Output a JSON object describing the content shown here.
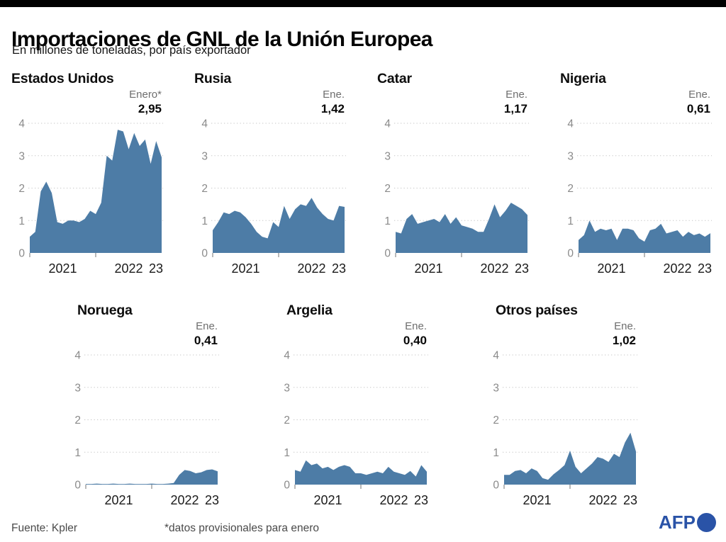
{
  "header": {
    "title": "Importaciones de GNL de la Unión Europea",
    "subtitle": "En millones de toneladas, por país exportador"
  },
  "colors": {
    "area": "#4d7ca6",
    "grid": "#c6c6c6",
    "y_tick_text": "#8a8a8a",
    "x_tick_text": "#1a1a1a",
    "axis_tick": "#8a8a8a",
    "period_label": "#6e6e6e",
    "top_bar": "#000000",
    "afp_blue": "#2a53a7"
  },
  "chart_data": [
    {
      "type": "area",
      "title": "Estados Unidos",
      "period_label": "Enero*",
      "latest_value_label": "2,95",
      "ylim": [
        0,
        4
      ],
      "y_ticks": [
        0,
        1,
        2,
        3,
        4
      ],
      "x_tick_labels": [
        "2021",
        "2022",
        "23"
      ],
      "grid": "dotted",
      "values": [
        0.5,
        0.65,
        1.9,
        2.2,
        1.85,
        0.95,
        0.9,
        1.0,
        1.0,
        0.95,
        1.05,
        1.3,
        1.2,
        1.55,
        3.0,
        2.85,
        3.8,
        3.75,
        3.2,
        3.7,
        3.3,
        3.5,
        2.75,
        3.45,
        2.95
      ]
    },
    {
      "type": "area",
      "title": "Rusia",
      "period_label": "Ene.",
      "latest_value_label": "1,42",
      "ylim": [
        0,
        4
      ],
      "y_ticks": [
        0,
        1,
        2,
        3,
        4
      ],
      "x_tick_labels": [
        "2021",
        "2022",
        "23"
      ],
      "grid": "dotted",
      "values": [
        0.7,
        0.95,
        1.25,
        1.2,
        1.3,
        1.25,
        1.1,
        0.9,
        0.65,
        0.5,
        0.45,
        0.95,
        0.8,
        1.45,
        1.05,
        1.35,
        1.5,
        1.45,
        1.7,
        1.4,
        1.2,
        1.05,
        1.0,
        1.45,
        1.42
      ]
    },
    {
      "type": "area",
      "title": "Catar",
      "period_label": "Ene.",
      "latest_value_label": "1,17",
      "ylim": [
        0,
        4
      ],
      "y_ticks": [
        0,
        1,
        2,
        3,
        4
      ],
      "x_tick_labels": [
        "2021",
        "2022",
        "23"
      ],
      "grid": "dotted",
      "values": [
        0.65,
        0.6,
        1.05,
        1.2,
        0.9,
        0.95,
        1.0,
        1.05,
        0.95,
        1.2,
        0.9,
        1.1,
        0.85,
        0.8,
        0.75,
        0.65,
        0.65,
        1.05,
        1.5,
        1.1,
        1.3,
        1.55,
        1.45,
        1.35,
        1.17
      ]
    },
    {
      "type": "area",
      "title": "Nigeria",
      "period_label": "Ene.",
      "latest_value_label": "0,61",
      "ylim": [
        0,
        4
      ],
      "y_ticks": [
        0,
        1,
        2,
        3,
        4
      ],
      "x_tick_labels": [
        "2021",
        "2022",
        "23"
      ],
      "grid": "dotted",
      "values": [
        0.4,
        0.55,
        1.0,
        0.65,
        0.75,
        0.7,
        0.75,
        0.4,
        0.75,
        0.75,
        0.7,
        0.45,
        0.35,
        0.7,
        0.75,
        0.9,
        0.6,
        0.65,
        0.7,
        0.5,
        0.65,
        0.55,
        0.6,
        0.5,
        0.61
      ]
    },
    {
      "type": "area",
      "title": "Noruega",
      "period_label": "Ene.",
      "latest_value_label": "0,41",
      "ylim": [
        0,
        4
      ],
      "y_ticks": [
        0,
        1,
        2,
        3,
        4
      ],
      "x_tick_labels": [
        "2021",
        "2022",
        "23"
      ],
      "grid": "dotted",
      "values": [
        0.02,
        0.02,
        0.03,
        0.02,
        0.02,
        0.03,
        0.02,
        0.02,
        0.03,
        0.02,
        0.02,
        0.02,
        0.03,
        0.02,
        0.02,
        0.03,
        0.05,
        0.3,
        0.45,
        0.42,
        0.35,
        0.38,
        0.45,
        0.47,
        0.41
      ]
    },
    {
      "type": "area",
      "title": "Argelia",
      "period_label": "Ene.",
      "latest_value_label": "0,40",
      "ylim": [
        0,
        4
      ],
      "y_ticks": [
        0,
        1,
        2,
        3,
        4
      ],
      "x_tick_labels": [
        "2021",
        "2022",
        "23"
      ],
      "grid": "dotted",
      "values": [
        0.45,
        0.4,
        0.75,
        0.6,
        0.65,
        0.5,
        0.55,
        0.45,
        0.55,
        0.6,
        0.55,
        0.35,
        0.35,
        0.3,
        0.35,
        0.4,
        0.35,
        0.55,
        0.4,
        0.35,
        0.3,
        0.42,
        0.25,
        0.6,
        0.4
      ]
    },
    {
      "type": "area",
      "title": "Otros países",
      "period_label": "Ene.",
      "latest_value_label": "1,02",
      "ylim": [
        0,
        4
      ],
      "y_ticks": [
        0,
        1,
        2,
        3,
        4
      ],
      "x_tick_labels": [
        "2021",
        "2022",
        "23"
      ],
      "grid": "dotted",
      "values": [
        0.3,
        0.3,
        0.42,
        0.45,
        0.35,
        0.5,
        0.42,
        0.2,
        0.15,
        0.32,
        0.45,
        0.6,
        1.05,
        0.55,
        0.35,
        0.5,
        0.65,
        0.85,
        0.8,
        0.7,
        0.95,
        0.85,
        1.3,
        1.6,
        1.02
      ]
    }
  ],
  "footer": {
    "source": "Fuente:  Kpler",
    "note": "*datos provisionales para enero",
    "logo_text": "AFP"
  }
}
